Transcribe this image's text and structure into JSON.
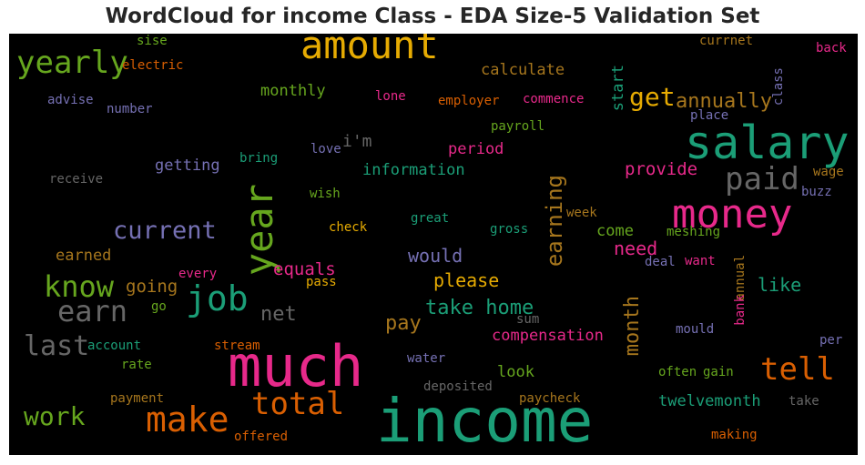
{
  "chart_data": {
    "type": "wordcloud",
    "title": "WordCloud for income Class - EDA Size-5 Validation Set",
    "words": [
      {
        "text": "income",
        "color": "#1b9e77"
      },
      {
        "text": "much",
        "color": "#e7298a"
      },
      {
        "text": "salary",
        "color": "#1b9e77"
      },
      {
        "text": "money",
        "color": "#e7298a"
      },
      {
        "text": "amount",
        "color": "#e6ab02"
      },
      {
        "text": "year",
        "color": "#66a61e"
      },
      {
        "text": "make",
        "color": "#d95f02"
      },
      {
        "text": "job",
        "color": "#1b9e77"
      },
      {
        "text": "tell",
        "color": "#d95f02"
      },
      {
        "text": "total",
        "color": "#d95f02"
      },
      {
        "text": "yearly",
        "color": "#66a61e"
      },
      {
        "text": "paid",
        "color": "#666666"
      },
      {
        "text": "know",
        "color": "#66a61e"
      },
      {
        "text": "earn",
        "color": "#666666"
      },
      {
        "text": "last",
        "color": "#666666"
      },
      {
        "text": "work",
        "color": "#66a61e"
      },
      {
        "text": "current",
        "color": "#7570b3"
      },
      {
        "text": "get",
        "color": "#e6ab02"
      },
      {
        "text": "earning",
        "color": "#a6761d"
      },
      {
        "text": "month",
        "color": "#a6761d"
      },
      {
        "text": "take home",
        "color": "#1b9e77"
      },
      {
        "text": "annually",
        "color": "#a6761d"
      },
      {
        "text": "pay",
        "color": "#a6761d"
      },
      {
        "text": "net",
        "color": "#666666"
      },
      {
        "text": "need",
        "color": "#e7298a"
      },
      {
        "text": "please",
        "color": "#e6ab02"
      },
      {
        "text": "like",
        "color": "#1b9e77"
      },
      {
        "text": "would",
        "color": "#7570b3"
      },
      {
        "text": "going",
        "color": "#a6761d"
      },
      {
        "text": "equals",
        "color": "#e7298a"
      },
      {
        "text": "provide",
        "color": "#e7298a"
      },
      {
        "text": "monthly",
        "color": "#66a61e"
      },
      {
        "text": "calculate",
        "color": "#a6761d"
      },
      {
        "text": "i'm",
        "color": "#666666"
      },
      {
        "text": "getting",
        "color": "#7570b3"
      },
      {
        "text": "information",
        "color": "#1b9e77"
      },
      {
        "text": "period",
        "color": "#e7298a"
      },
      {
        "text": "compensation",
        "color": "#e7298a"
      },
      {
        "text": "twelvemonth",
        "color": "#1b9e77"
      },
      {
        "text": "earned",
        "color": "#a6761d"
      },
      {
        "text": "come",
        "color": "#66a61e"
      },
      {
        "text": "look",
        "color": "#66a61e"
      },
      {
        "text": "start",
        "color": "#1b9e77"
      },
      {
        "text": "electric",
        "color": "#d95f02"
      },
      {
        "text": "sise",
        "color": "#66a61e"
      },
      {
        "text": "currnet",
        "color": "#a6761d"
      },
      {
        "text": "back",
        "color": "#e7298a"
      },
      {
        "text": "class",
        "color": "#7570b3"
      },
      {
        "text": "advise",
        "color": "#7570b3"
      },
      {
        "text": "number",
        "color": "#7570b3"
      },
      {
        "text": "lone",
        "color": "#e7298a"
      },
      {
        "text": "employer",
        "color": "#d95f02"
      },
      {
        "text": "commence",
        "color": "#e7298a"
      },
      {
        "text": "payroll",
        "color": "#66a61e"
      },
      {
        "text": "place",
        "color": "#7570b3"
      },
      {
        "text": "love",
        "color": "#7570b3"
      },
      {
        "text": "bring",
        "color": "#1b9e77"
      },
      {
        "text": "receive",
        "color": "#666666"
      },
      {
        "text": "wish",
        "color": "#66a61e"
      },
      {
        "text": "check",
        "color": "#e6ab02"
      },
      {
        "text": "great",
        "color": "#1b9e77"
      },
      {
        "text": "gross",
        "color": "#1b9e77"
      },
      {
        "text": "week",
        "color": "#a6761d"
      },
      {
        "text": "meshing",
        "color": "#66a61e"
      },
      {
        "text": "wage",
        "color": "#a6761d"
      },
      {
        "text": "buzz",
        "color": "#7570b3"
      },
      {
        "text": "deal",
        "color": "#7570b3"
      },
      {
        "text": "want",
        "color": "#e7298a"
      },
      {
        "text": "annual",
        "color": "#a6761d"
      },
      {
        "text": "bank",
        "color": "#e7298a"
      },
      {
        "text": "every",
        "color": "#e7298a"
      },
      {
        "text": "pass",
        "color": "#e6ab02"
      },
      {
        "text": "go",
        "color": "#66a61e"
      },
      {
        "text": "sum",
        "color": "#666666"
      },
      {
        "text": "mould",
        "color": "#7570b3"
      },
      {
        "text": "per",
        "color": "#7570b3"
      },
      {
        "text": "account",
        "color": "#1b9e77"
      },
      {
        "text": "stream",
        "color": "#d95f02"
      },
      {
        "text": "water",
        "color": "#7570b3"
      },
      {
        "text": "rate",
        "color": "#66a61e"
      },
      {
        "text": "often",
        "color": "#66a61e"
      },
      {
        "text": "gain",
        "color": "#66a61e"
      },
      {
        "text": "deposited",
        "color": "#666666"
      },
      {
        "text": "payment",
        "color": "#a6761d"
      },
      {
        "text": "paycheck",
        "color": "#a6761d"
      },
      {
        "text": "take",
        "color": "#666666"
      },
      {
        "text": "offered",
        "color": "#d95f02"
      },
      {
        "text": "making",
        "color": "#d95f02"
      }
    ]
  }
}
